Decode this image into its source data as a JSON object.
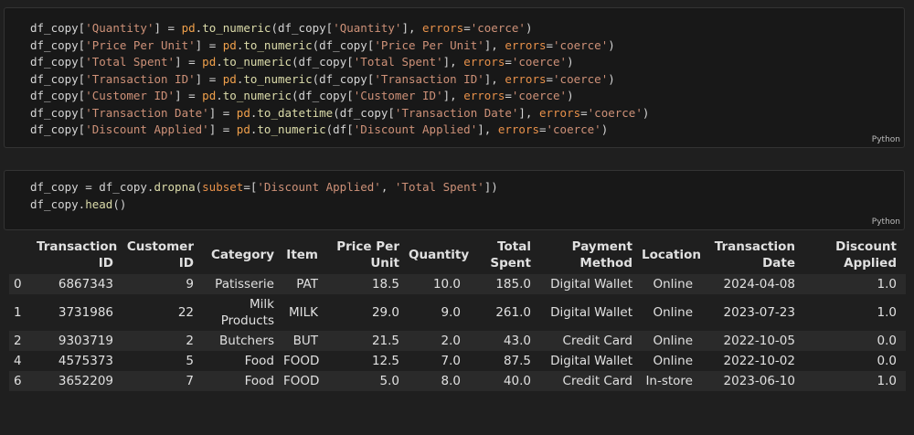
{
  "cells": [
    {
      "code": [
        [
          "df_copy[",
          "'Quantity'",
          "] = ",
          "pd",
          ".",
          "to_numeric",
          "(df_copy[",
          "'Quantity'",
          "], ",
          "errors",
          "=",
          "'coerce'",
          ")"
        ],
        [
          "df_copy[",
          "'Price Per Unit'",
          "] = ",
          "pd",
          ".",
          "to_numeric",
          "(df_copy[",
          "'Price Per Unit'",
          "], ",
          "errors",
          "=",
          "'coerce'",
          ")"
        ],
        [
          "df_copy[",
          "'Total Spent'",
          "] = ",
          "pd",
          ".",
          "to_numeric",
          "(df_copy[",
          "'Total Spent'",
          "], ",
          "errors",
          "=",
          "'coerce'",
          ")"
        ],
        [
          "df_copy[",
          "'Transaction ID'",
          "] = ",
          "pd",
          ".",
          "to_numeric",
          "(df_copy[",
          "'Transaction ID'",
          "], ",
          "errors",
          "=",
          "'coerce'",
          ")"
        ],
        [
          "df_copy[",
          "'Customer ID'",
          "] = ",
          "pd",
          ".",
          "to_numeric",
          "(df_copy[",
          "'Customer ID'",
          "], ",
          "errors",
          "=",
          "'coerce'",
          ")"
        ],
        [
          "df_copy[",
          "'Transaction Date'",
          "] = ",
          "pd",
          ".",
          "to_datetime",
          "(df_copy[",
          "'Transaction Date'",
          "], ",
          "errors",
          "=",
          "'coerce'",
          ")"
        ],
        [
          "df_copy[",
          "'Discount Applied'",
          "] = ",
          "pd",
          ".",
          "to_numeric",
          "(df[",
          "'Discount Applied'",
          "], ",
          "errors",
          "=",
          "'coerce'",
          ")"
        ]
      ],
      "language": "Python"
    },
    {
      "code": [
        [
          "df_copy = df_copy.",
          "dropna",
          "(",
          "subset",
          "=[",
          "'Discount Applied'",
          ", ",
          "'Total Spent'",
          "])"
        ],
        [
          "df_copy.",
          "head",
          "()"
        ]
      ],
      "language": "Python"
    }
  ],
  "table": {
    "columns": [
      "Transaction ID",
      "Customer ID",
      "Category",
      "Item",
      "Price Per Unit",
      "Quantity",
      "Total Spent",
      "Payment Method",
      "Location",
      "Transaction Date",
      "Discount Applied"
    ],
    "rows": [
      [
        "0",
        "6867343",
        "9",
        "Patisserie",
        "PAT",
        "18.5",
        "10.0",
        "185.0",
        "Digital Wallet",
        "Online",
        "2024-04-08",
        "1.0"
      ],
      [
        "1",
        "3731986",
        "22",
        "Milk Products",
        "MILK",
        "29.0",
        "9.0",
        "261.0",
        "Digital Wallet",
        "Online",
        "2023-07-23",
        "1.0"
      ],
      [
        "2",
        "9303719",
        "2",
        "Butchers",
        "BUT",
        "21.5",
        "2.0",
        "43.0",
        "Credit Card",
        "Online",
        "2022-10-05",
        "0.0"
      ],
      [
        "4",
        "4575373",
        "5",
        "Food",
        "FOOD",
        "12.5",
        "7.0",
        "87.5",
        "Digital Wallet",
        "Online",
        "2022-10-02",
        "0.0"
      ],
      [
        "6",
        "3652209",
        "7",
        "Food",
        "FOOD",
        "5.0",
        "8.0",
        "40.0",
        "Credit Card",
        "In-store",
        "2023-06-10",
        "1.0"
      ]
    ]
  }
}
